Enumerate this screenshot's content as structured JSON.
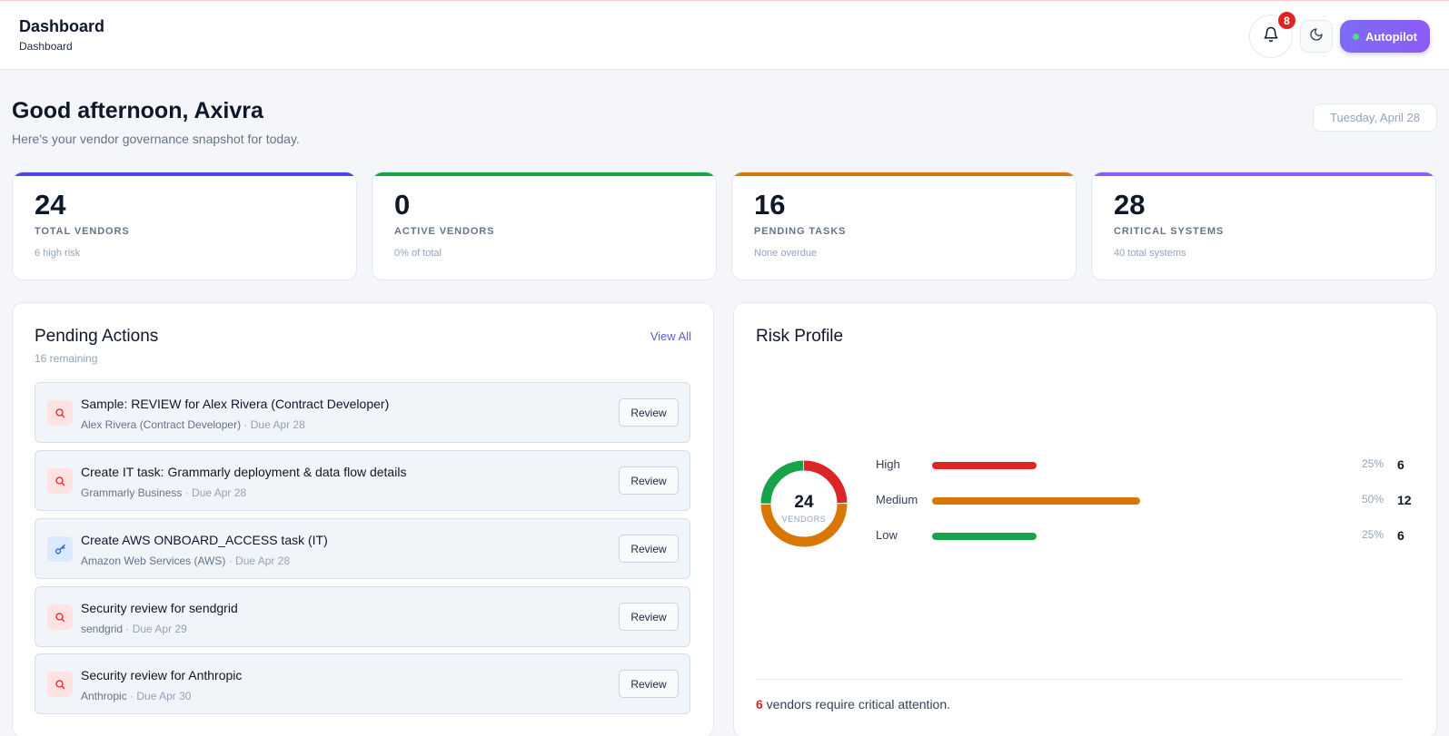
{
  "header": {
    "title": "Dashboard",
    "breadcrumb": "Dashboard",
    "notification_count": "8",
    "autopilot_label": "Autopilot"
  },
  "welcome": {
    "greeting": "Good afternoon, Axivra",
    "subtitle": "Here's your vendor governance snapshot for today.",
    "date": "Tuesday, April 28"
  },
  "stats": [
    {
      "value": "24",
      "label": "TOTAL VENDORS",
      "note": "6 high risk",
      "accent": "#4f46e5"
    },
    {
      "value": "0",
      "label": "ACTIVE VENDORS",
      "note": "0% of total",
      "accent": "#16a34a"
    },
    {
      "value": "16",
      "label": "PENDING TASKS",
      "note": "None overdue",
      "accent": "#d97706"
    },
    {
      "value": "28",
      "label": "CRITICAL SYSTEMS",
      "note": "40 total systems",
      "accent": "#8b5cf6"
    }
  ],
  "pending": {
    "title": "Pending Actions",
    "remaining": "16 remaining",
    "view_all": "View All",
    "review_label": "Review",
    "items": [
      {
        "title": "Sample: REVIEW for Alex Rivera (Contract Developer)",
        "vendor": "Alex Rivera (Contract Developer)",
        "due": "· Due Apr 28",
        "icon": "search-icon"
      },
      {
        "title": "Create IT task: Grammarly deployment & data flow details",
        "vendor": "Grammarly Business",
        "due": "· Due Apr 28",
        "icon": "search-icon"
      },
      {
        "title": "Create AWS ONBOARD_ACCESS task (IT)",
        "vendor": "Amazon Web Services (AWS)",
        "due": "· Due Apr 28",
        "icon": "key-icon"
      },
      {
        "title": "Security review for sendgrid",
        "vendor": "sendgrid",
        "due": "· Due Apr 29",
        "icon": "search-icon"
      },
      {
        "title": "Security review for Anthropic",
        "vendor": "Anthropic",
        "due": "· Due Apr 30",
        "icon": "search-icon"
      }
    ]
  },
  "risk": {
    "title": "Risk Profile",
    "donut_total": "24",
    "donut_label": "VENDORS",
    "levels": [
      {
        "label": "High",
        "percent": "25%",
        "count": "6",
        "fraction": 0.25,
        "color": "#dc2626"
      },
      {
        "label": "Medium",
        "percent": "50%",
        "count": "12",
        "fraction": 0.5,
        "color": "#d97706"
      },
      {
        "label": "Low",
        "percent": "25%",
        "count": "6",
        "fraction": 0.25,
        "color": "#16a34a"
      }
    ],
    "critical_count": "6",
    "critical_text": " vendors require critical attention."
  }
}
